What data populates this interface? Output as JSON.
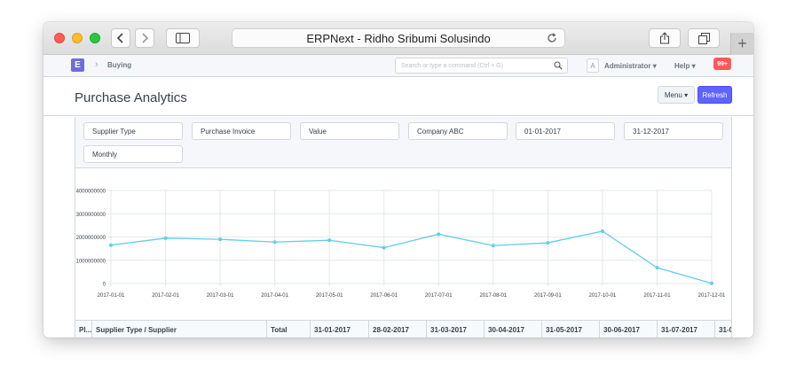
{
  "browser": {
    "address": "ERPNext - Ridho Sribumi Solusindo"
  },
  "navbar": {
    "logo_letter": "E",
    "breadcrumb": "Buying",
    "search_placeholder": "Search or type a command (Ctrl + G)",
    "avatar_letter": "A",
    "user": "Administrator",
    "help": "Help",
    "notifications": "99+"
  },
  "page": {
    "title": "Purchase Analytics",
    "menu_label": "Menu",
    "refresh_label": "Refresh"
  },
  "filters": {
    "tree_type": "Supplier Type",
    "doc_type": "Purchase Invoice",
    "value_quantity": "Value",
    "company": "Company ABC",
    "from_date": "01-01-2017",
    "to_date": "31-12-2017",
    "range": "Monthly"
  },
  "chart_data": {
    "type": "line",
    "title": "",
    "xlabel": "",
    "ylabel": "",
    "x": [
      "2017-01-01",
      "2017-02-01",
      "2017-03-01",
      "2017-04-01",
      "2017-05-01",
      "2017-06-01",
      "2017-07-01",
      "2017-08-01",
      "2017-09-01",
      "2017-10-01",
      "2017-11-01",
      "2017-12-01"
    ],
    "y_ticks": [
      "0",
      "1000000000",
      "2000000000",
      "3000000000",
      "4000000000"
    ],
    "ylim": [
      0,
      4000000000
    ],
    "grid": true,
    "series": [
      {
        "values": [
          1650000000,
          1950000000,
          1900000000,
          1780000000,
          1860000000,
          1540000000,
          2120000000,
          1630000000,
          1750000000,
          2250000000,
          680000000,
          10000000
        ]
      }
    ],
    "color": "#5ecfea"
  },
  "table": {
    "columns": [
      "Pl...",
      "Supplier Type / Supplier",
      "Total",
      "31-01-2017",
      "28-02-2017",
      "31-03-2017",
      "30-04-2017",
      "31-05-2017",
      "30-06-2017",
      "31-07-2017",
      "31-0"
    ]
  }
}
